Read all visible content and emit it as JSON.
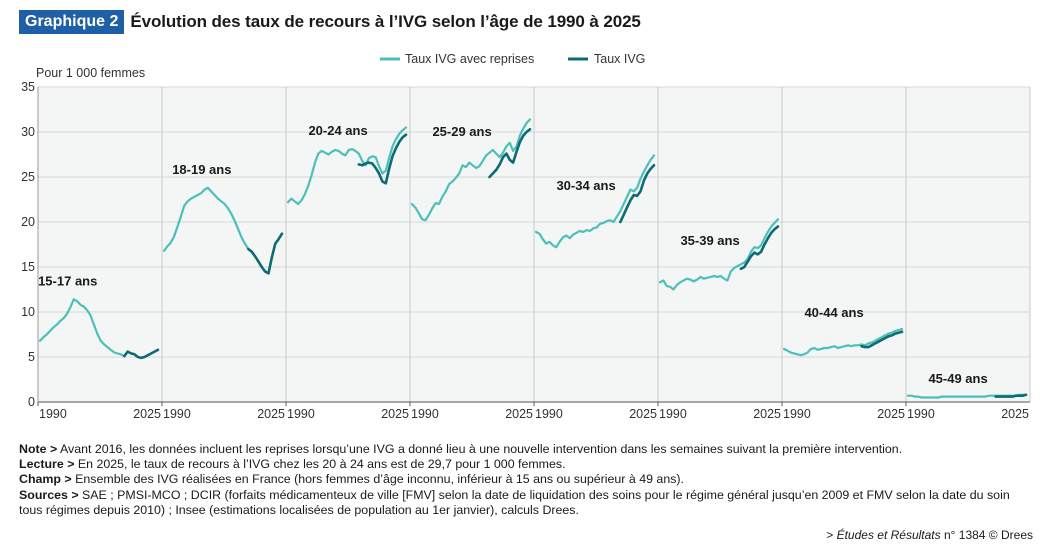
{
  "header": {
    "badge": "Graphique 2",
    "title": "Évolution des taux de recours à l’IVG selon l’âge de 1990 à 2025"
  },
  "colors": {
    "light": "#4cc0b8",
    "dark": "#0c6b74",
    "badge": "#1f5fa6",
    "grid": "#d6d6d6"
  },
  "chart_data": {
    "type": "line",
    "ylabel": "Pour 1 000 femmes",
    "ylim": [
      0,
      35
    ],
    "yticks": [
      0,
      5,
      10,
      15,
      20,
      25,
      30,
      35
    ],
    "xlim": [
      1990,
      2025
    ],
    "xtick_labels": [
      "1990",
      "2025"
    ],
    "grid": true,
    "legend": {
      "position": "top",
      "entries": [
        "Taux IVG avec reprises",
        "Taux IVG"
      ]
    },
    "panels": [
      {
        "label": "15-17 ans",
        "series": [
          {
            "name": "Taux IVG avec reprises",
            "x": [
              1990,
              1991,
              1992,
              1993,
              1994,
              1995,
              1996,
              1997,
              1998,
              1999,
              2000,
              2001,
              2002,
              2003,
              2004,
              2005,
              2006,
              2007,
              2008,
              2009,
              2010,
              2011,
              2012,
              2013,
              2014,
              2015
            ],
            "y": [
              6.8,
              7.2,
              7.5,
              7.9,
              8.3,
              8.6,
              9.0,
              9.3,
              9.8,
              10.5,
              11.4,
              11.2,
              10.8,
              10.6,
              10.2,
              9.6,
              8.6,
              7.6,
              6.8,
              6.4,
              6.1,
              5.8,
              5.5,
              5.4,
              5.3,
              5.1
            ]
          },
          {
            "name": "Taux IVG",
            "x": [
              2015,
              2016,
              2017,
              2018,
              2019,
              2020,
              2021,
              2022,
              2023,
              2024,
              2025
            ],
            "y": [
              5.1,
              5.6,
              5.4,
              5.3,
              5.0,
              4.9,
              5.0,
              5.2,
              5.4,
              5.6,
              5.8
            ]
          }
        ]
      },
      {
        "label": "18-19 ans",
        "series": [
          {
            "name": "Taux IVG avec reprises",
            "x": [
              1990,
              1991,
              1992,
              1993,
              1994,
              1995,
              1996,
              1997,
              1998,
              1999,
              2000,
              2001,
              2002,
              2003,
              2004,
              2005,
              2006,
              2007,
              2008,
              2009,
              2010,
              2011,
              2012,
              2013,
              2014,
              2015
            ],
            "y": [
              16.8,
              17.3,
              17.7,
              18.4,
              19.5,
              20.6,
              21.8,
              22.3,
              22.6,
              22.8,
              23.0,
              23.2,
              23.6,
              23.8,
              23.4,
              23.0,
              22.6,
              22.3,
              22.0,
              21.5,
              20.9,
              20.1,
              19.2,
              18.3,
              17.6,
              17.0
            ]
          },
          {
            "name": "Taux IVG",
            "x": [
              2015,
              2016,
              2017,
              2018,
              2019,
              2020,
              2021,
              2022,
              2023,
              2024,
              2025
            ],
            "y": [
              17.0,
              16.7,
              16.2,
              15.6,
              15.0,
              14.5,
              14.3,
              16.1,
              17.6,
              18.1,
              18.7
            ]
          }
        ]
      },
      {
        "label": "20-24 ans",
        "series": [
          {
            "name": "Taux IVG avec reprises",
            "x": [
              1990,
              1991,
              1992,
              1993,
              1994,
              1995,
              1996,
              1997,
              1998,
              1999,
              2000,
              2001,
              2002,
              2003,
              2004,
              2005,
              2006,
              2007,
              2008,
              2009,
              2010,
              2011,
              2012,
              2013,
              2014,
              2015,
              2016,
              2017,
              2018,
              2019,
              2020,
              2021,
              2022,
              2023,
              2024,
              2025
            ],
            "y": [
              22.2,
              22.6,
              22.3,
              22.0,
              22.4,
              23.1,
              24.0,
              25.2,
              26.6,
              27.6,
              27.9,
              27.7,
              27.5,
              27.8,
              28.0,
              27.9,
              27.6,
              27.4,
              28.0,
              28.1,
              27.9,
              27.6,
              26.8,
              26.3,
              27.1,
              27.3,
              27.2,
              26.2,
              25.4,
              25.7,
              27.1,
              28.4,
              29.2,
              29.8,
              30.2,
              30.5
            ]
          },
          {
            "name": "Taux IVG",
            "x": [
              2011,
              2012,
              2013,
              2014,
              2015,
              2016,
              2017,
              2018,
              2019,
              2020,
              2021,
              2022,
              2023,
              2024,
              2025
            ],
            "y": [
              26.4,
              26.3,
              26.5,
              26.6,
              26.5,
              26.0,
              25.4,
              24.5,
              24.3,
              25.9,
              27.3,
              28.2,
              28.9,
              29.4,
              29.7
            ]
          }
        ]
      },
      {
        "label": "25-29 ans",
        "series": [
          {
            "name": "Taux IVG avec reprises",
            "x": [
              1990,
              1991,
              1992,
              1993,
              1994,
              1995,
              1996,
              1997,
              1998,
              1999,
              2000,
              2001,
              2002,
              2003,
              2004,
              2005,
              2006,
              2007,
              2008,
              2009,
              2010,
              2011,
              2012,
              2013,
              2014,
              2015,
              2016,
              2017,
              2018,
              2019,
              2020,
              2021,
              2022,
              2023,
              2024,
              2025
            ],
            "y": [
              22.0,
              21.6,
              21.0,
              20.3,
              20.2,
              20.8,
              21.5,
              22.1,
              22.0,
              22.8,
              23.4,
              24.2,
              24.5,
              24.9,
              25.4,
              26.3,
              26.1,
              26.6,
              26.3,
              26.0,
              26.2,
              26.8,
              27.4,
              27.7,
              28.0,
              27.6,
              27.2,
              27.7,
              28.4,
              28.8,
              27.9,
              28.4,
              29.6,
              30.4,
              31.0,
              31.4
            ]
          },
          {
            "name": "Taux IVG",
            "x": [
              2013,
              2014,
              2015,
              2016,
              2017,
              2018,
              2019,
              2020,
              2021,
              2022,
              2023,
              2024,
              2025
            ],
            "y": [
              25.0,
              25.4,
              25.8,
              26.4,
              27.2,
              27.6,
              26.9,
              26.6,
              27.8,
              28.9,
              29.6,
              30.0,
              30.3
            ]
          }
        ]
      },
      {
        "label": "30-34 ans",
        "series": [
          {
            "name": "Taux IVG avec reprises",
            "x": [
              1990,
              1991,
              1992,
              1993,
              1994,
              1995,
              1996,
              1997,
              1998,
              1999,
              2000,
              2001,
              2002,
              2003,
              2004,
              2005,
              2006,
              2007,
              2008,
              2009,
              2010,
              2011,
              2012,
              2013,
              2014,
              2015,
              2016,
              2017,
              2018,
              2019,
              2020,
              2021,
              2022,
              2023,
              2024,
              2025
            ],
            "y": [
              18.9,
              18.7,
              18.1,
              17.6,
              17.8,
              17.4,
              17.2,
              17.8,
              18.3,
              18.5,
              18.2,
              18.6,
              18.8,
              19.0,
              18.9,
              19.1,
              19.0,
              19.3,
              19.4,
              19.8,
              19.9,
              20.1,
              20.2,
              20.0,
              20.6,
              21.2,
              22.0,
              22.8,
              23.6,
              23.4,
              23.8,
              24.8,
              25.6,
              26.3,
              26.9,
              27.4
            ]
          },
          {
            "name": "Taux IVG",
            "x": [
              2015,
              2016,
              2017,
              2018,
              2019,
              2020,
              2021,
              2022,
              2023,
              2024,
              2025
            ],
            "y": [
              20.0,
              20.8,
              21.6,
              22.4,
              23.0,
              22.9,
              23.4,
              24.6,
              25.4,
              25.9,
              26.3
            ]
          }
        ]
      },
      {
        "label": "35-39 ans",
        "series": [
          {
            "name": "Taux IVG avec reprises",
            "x": [
              1990,
              1991,
              1992,
              1993,
              1994,
              1995,
              1996,
              1997,
              1998,
              1999,
              2000,
              2001,
              2002,
              2003,
              2004,
              2005,
              2006,
              2007,
              2008,
              2009,
              2010,
              2011,
              2012,
              2013,
              2014,
              2015,
              2016,
              2017,
              2018,
              2019,
              2020,
              2021,
              2022,
              2023,
              2024,
              2025
            ],
            "y": [
              13.3,
              13.5,
              12.9,
              12.8,
              12.5,
              13.0,
              13.3,
              13.5,
              13.7,
              13.6,
              13.4,
              13.6,
              13.9,
              13.7,
              13.8,
              13.9,
              14.0,
              13.9,
              14.0,
              13.7,
              13.5,
              14.5,
              14.9,
              15.1,
              15.3,
              15.5,
              15.9,
              16.7,
              17.2,
              17.1,
              17.4,
              18.2,
              18.9,
              19.5,
              19.9,
              20.3
            ]
          },
          {
            "name": "Taux IVG",
            "x": [
              2014,
              2015,
              2016,
              2017,
              2018,
              2019,
              2020,
              2021,
              2022,
              2023,
              2024,
              2025
            ],
            "y": [
              14.8,
              15.0,
              15.6,
              16.2,
              16.6,
              16.4,
              16.7,
              17.5,
              18.2,
              18.8,
              19.2,
              19.5
            ]
          }
        ]
      },
      {
        "label": "40-44 ans",
        "series": [
          {
            "name": "Taux IVG avec reprises",
            "x": [
              1990,
              1991,
              1992,
              1993,
              1994,
              1995,
              1996,
              1997,
              1998,
              1999,
              2000,
              2001,
              2002,
              2003,
              2004,
              2005,
              2006,
              2007,
              2008,
              2009,
              2010,
              2011,
              2012,
              2013,
              2014,
              2015,
              2016,
              2017,
              2018,
              2019,
              2020,
              2021,
              2022,
              2023,
              2024,
              2025
            ],
            "y": [
              5.9,
              5.7,
              5.5,
              5.4,
              5.3,
              5.2,
              5.3,
              5.5,
              5.9,
              6.0,
              5.8,
              5.9,
              6.0,
              6.0,
              6.1,
              6.2,
              6.0,
              6.1,
              6.2,
              6.3,
              6.2,
              6.3,
              6.3,
              6.4,
              6.3,
              6.5,
              6.6,
              6.8,
              7.0,
              7.2,
              7.4,
              7.6,
              7.7,
              7.9,
              8.0,
              8.1
            ]
          },
          {
            "name": "Taux IVG",
            "x": [
              2013,
              2014,
              2015,
              2016,
              2017,
              2018,
              2019,
              2020,
              2021,
              2022,
              2023,
              2024,
              2025
            ],
            "y": [
              6.2,
              6.1,
              6.1,
              6.3,
              6.5,
              6.7,
              6.9,
              7.1,
              7.3,
              7.4,
              7.6,
              7.7,
              7.8
            ]
          }
        ]
      },
      {
        "label": "45-49 ans",
        "series": [
          {
            "name": "Taux IVG avec reprises",
            "x": [
              1990,
              1991,
              1992,
              1993,
              1994,
              1995,
              1996,
              1997,
              1998,
              1999,
              2000,
              2001,
              2002,
              2003,
              2004,
              2005,
              2006,
              2007,
              2008,
              2009,
              2010,
              2011,
              2012,
              2013,
              2014,
              2015,
              2016,
              2017,
              2018,
              2019,
              2020,
              2021,
              2022,
              2023,
              2024,
              2025
            ],
            "y": [
              0.7,
              0.7,
              0.6,
              0.6,
              0.5,
              0.5,
              0.5,
              0.5,
              0.5,
              0.5,
              0.6,
              0.6,
              0.6,
              0.6,
              0.6,
              0.6,
              0.6,
              0.6,
              0.6,
              0.6,
              0.6,
              0.6,
              0.6,
              0.6,
              0.7,
              0.7,
              0.7,
              0.7,
              0.7,
              0.7,
              0.7,
              0.7,
              0.7,
              0.8,
              0.8,
              0.8
            ]
          },
          {
            "name": "Taux IVG",
            "x": [
              2016,
              2017,
              2018,
              2019,
              2020,
              2021,
              2022,
              2023,
              2024,
              2025
            ],
            "y": [
              0.6,
              0.6,
              0.6,
              0.6,
              0.6,
              0.6,
              0.7,
              0.7,
              0.7,
              0.8
            ]
          }
        ]
      }
    ]
  },
  "notes": [
    {
      "label": "Note >",
      "text": " Avant 2016, les données incluent les reprises lorsqu’une IVG a donné lieu à une nouvelle intervention dans les semaines suivant la première intervention."
    },
    {
      "label": "Lecture >",
      "text": " En 2025, le taux de recours à l’IVG chez les 20 à 24 ans est de 29,7 pour 1 000 femmes."
    },
    {
      "label": "Champ >",
      "text": " Ensemble des IVG réalisées en France (hors femmes d’âge inconnu, inférieur à 15 ans ou supérieur à 49 ans)."
    },
    {
      "label": "Sources >",
      "text": " SAE ; PMSI-MCO ; DCIR (forfaits médicamenteux de ville [FMV] selon la date de liquidation des soins pour le régime général jusqu’en 2009 et FMV selon la date du soin tous régimes depuis 2010) ; Insee (estimations localisées de population au 1er janvier), calculs Drees."
    }
  ],
  "credit": {
    "prefix": "> ",
    "publication": "Études et Résultats",
    "suffix": " n° 1384 © Drees"
  }
}
